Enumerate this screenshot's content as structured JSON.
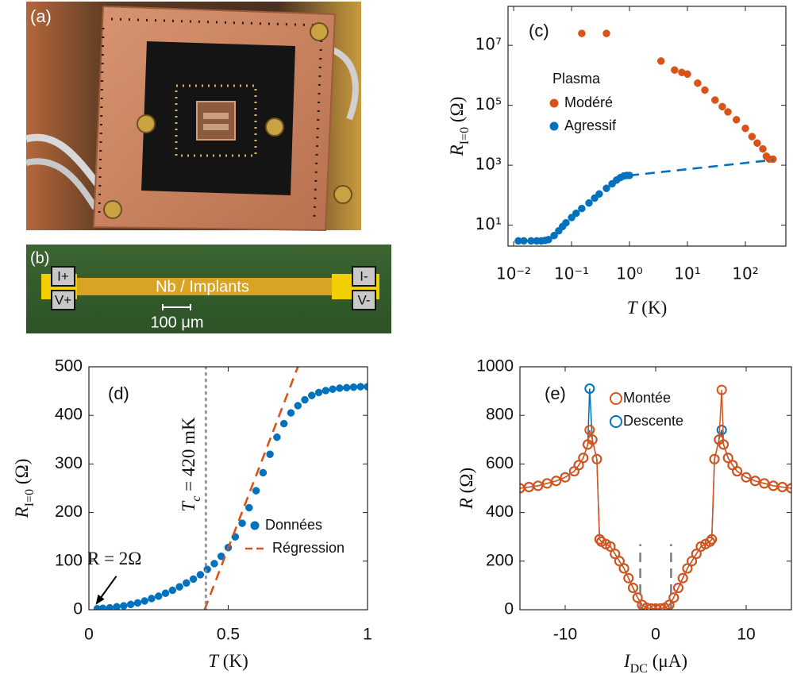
{
  "photo_a": {
    "label": "(a)"
  },
  "photo_b": {
    "label": "(b)",
    "title": "Nb / Implants",
    "scale_bar": "100 μm",
    "pads": [
      "I+",
      "V+",
      "I-",
      "V-"
    ]
  },
  "chart_data": [
    {
      "type": "scatter",
      "panel_label": "(c)",
      "xscale": "log",
      "yscale": "log",
      "xlim": [
        0.008,
        500
      ],
      "ylim": [
        2,
        200000000
      ],
      "xticks": [
        {
          "value": 0.01,
          "label": "10⁻²"
        },
        {
          "value": 0.1,
          "label": "10⁻¹"
        },
        {
          "value": 1,
          "label": "10⁰"
        },
        {
          "value": 10,
          "label": "10¹"
        },
        {
          "value": 100,
          "label": "10²"
        }
      ],
      "yticks": [
        {
          "value": 10,
          "label": "10¹"
        },
        {
          "value": 1000,
          "label": "10³"
        },
        {
          "value": 100000,
          "label": "10⁵"
        },
        {
          "value": 10000000,
          "label": "10⁷"
        }
      ],
      "xlabel": [
        {
          "text": "T"
        },
        {
          "text": " (K)"
        }
      ],
      "ylabel": [
        {
          "text": "R"
        },
        {
          "text": "I=0",
          "sub": true
        },
        {
          "text": " (Ω)"
        }
      ],
      "legend": "upper left",
      "legend_title": "Plasma",
      "series": [
        {
          "name": "Modéré",
          "color": "#d95319",
          "marker": "filled",
          "x": [
            0.15,
            0.4,
            3.5,
            6,
            8,
            10,
            15,
            20,
            30,
            40,
            50,
            70,
            100,
            130,
            160,
            200,
            230,
            260,
            300
          ],
          "values": [
            25000000,
            25000000,
            3000000,
            1500000,
            1250000,
            1100000,
            550000,
            320000,
            150000,
            90000,
            60000,
            33000,
            17000,
            9000,
            5500,
            3500,
            2000,
            1600,
            1600
          ]
        },
        {
          "name": "Agressif",
          "color": "#0072bd",
          "marker": "filled",
          "x": [
            0.012,
            0.015,
            0.02,
            0.025,
            0.03,
            0.035,
            0.04,
            0.05,
            0.06,
            0.07,
            0.08,
            0.1,
            0.12,
            0.15,
            0.2,
            0.25,
            0.3,
            0.4,
            0.5,
            0.6,
            0.7,
            0.8,
            0.9,
            1
          ],
          "values": [
            3,
            3,
            3,
            3,
            3,
            3.1,
            3.3,
            4.5,
            6.5,
            9,
            12,
            18,
            25,
            36,
            55,
            80,
            110,
            170,
            240,
            320,
            390,
            440,
            455,
            457
          ]
        },
        {
          "color": "#0072bd",
          "linestyle": "dashed",
          "x": [
            1,
            300
          ],
          "values": [
            457,
            1500
          ]
        }
      ]
    },
    {
      "type": "scatter",
      "panel_label": "(d)",
      "xlim": [
        0,
        1
      ],
      "ylim": [
        0,
        500
      ],
      "xticks": [
        0,
        0.5,
        1
      ],
      "yticks": [
        0,
        100,
        200,
        300,
        400,
        500
      ],
      "xlabel": [
        {
          "text": "T"
        },
        {
          "text": " (K)"
        }
      ],
      "ylabel": [
        {
          "text": "R"
        },
        {
          "text": "I=0",
          "sub": true
        },
        {
          "text": " (Ω)"
        }
      ],
      "legend": "lower right",
      "annotations": [
        [
          {
            "text": "T"
          },
          {
            "text": "c",
            "sub": true
          },
          {
            "text": " = 420 mK"
          }
        ],
        [
          {
            "text": "R = 2Ω"
          }
        ]
      ],
      "series": [
        {
          "name": "Données",
          "color": "#0072bd",
          "marker": "filled",
          "x": [
            0.03,
            0.05,
            0.075,
            0.1,
            0.125,
            0.15,
            0.175,
            0.2,
            0.225,
            0.25,
            0.275,
            0.3,
            0.325,
            0.35,
            0.375,
            0.4,
            0.425,
            0.45,
            0.475,
            0.5,
            0.525,
            0.55,
            0.575,
            0.6,
            0.625,
            0.65,
            0.675,
            0.7,
            0.725,
            0.75,
            0.775,
            0.8,
            0.825,
            0.85,
            0.875,
            0.9,
            0.925,
            0.95,
            0.975,
            1
          ],
          "values": [
            2,
            3,
            4,
            6,
            8,
            11,
            14,
            18,
            23,
            28,
            34,
            40,
            47,
            55,
            63,
            72,
            83,
            95,
            110,
            128,
            150,
            178,
            210,
            245,
            282,
            320,
            355,
            383,
            405,
            420,
            432,
            441,
            447,
            451,
            454,
            456,
            457,
            458,
            459,
            459
          ]
        },
        {
          "name": "Régression",
          "color": "#d95319",
          "linestyle": "dashed",
          "x": [
            0.415,
            0.75
          ],
          "values": [
            0,
            500
          ]
        },
        {
          "color": "#888888",
          "linestyle": "dotted",
          "x": [
            0.42,
            0.42
          ],
          "values": [
            0,
            500
          ]
        }
      ]
    },
    {
      "type": "scatter",
      "panel_label": "(e)",
      "xlim": [
        -15,
        15
      ],
      "ylim": [
        0,
        1000
      ],
      "xticks": [
        -10,
        0,
        10
      ],
      "yticks": [
        0,
        200,
        400,
        600,
        800,
        1000
      ],
      "xlabel": [
        {
          "text": "I"
        },
        {
          "text": "DC",
          "sub": true
        },
        {
          "text": " (μA)"
        }
      ],
      "ylabel": [
        {
          "text": "R"
        },
        {
          "text": " (Ω)"
        }
      ],
      "legend": "upper left",
      "x": [
        -15,
        -14,
        -13,
        -12,
        -11,
        -10,
        -9,
        -8.5,
        -8,
        -7.5,
        -7.3,
        -7,
        -6.5,
        -6.2,
        -6,
        -5.5,
        -5,
        -4.5,
        -4,
        -3.5,
        -3,
        -2.5,
        -2,
        -1.5,
        -1,
        -0.5,
        0,
        0.5,
        1,
        1.5,
        2,
        2.5,
        3,
        3.5,
        4,
        4.5,
        5,
        5.5,
        6,
        6.2,
        6.5,
        7,
        7.3,
        7.5,
        8,
        8.5,
        9,
        10,
        11,
        12,
        13,
        14,
        15
      ],
      "series": [
        {
          "name": "Montée",
          "color": "#d95319",
          "marker": "open",
          "linestyle": "solid",
          "values": [
            500,
            505,
            510,
            520,
            530,
            545,
            570,
            595,
            625,
            680,
            740,
            700,
            620,
            290,
            280,
            270,
            260,
            230,
            200,
            170,
            130,
            90,
            50,
            20,
            8,
            5,
            5,
            5,
            8,
            20,
            50,
            90,
            130,
            170,
            200,
            230,
            260,
            270,
            280,
            290,
            620,
            700,
            905,
            680,
            625,
            595,
            570,
            545,
            530,
            520,
            510,
            505,
            500
          ]
        },
        {
          "name": "Descente",
          "color": "#0072bd",
          "marker": "open",
          "linestyle": "solid",
          "values": [
            500,
            505,
            510,
            520,
            530,
            545,
            570,
            595,
            625,
            680,
            910,
            700,
            620,
            290,
            280,
            270,
            260,
            230,
            200,
            170,
            130,
            90,
            50,
            20,
            8,
            5,
            5,
            5,
            8,
            20,
            50,
            90,
            130,
            170,
            200,
            230,
            260,
            270,
            280,
            290,
            620,
            700,
            740,
            680,
            625,
            595,
            570,
            545,
            530,
            520,
            510,
            505,
            500
          ]
        },
        {
          "color": "#808080",
          "linestyle": "dashed",
          "x": [
            -1.7,
            -1.7
          ],
          "values": [
            0,
            270
          ]
        },
        {
          "color": "#808080",
          "linestyle": "dashed",
          "x": [
            1.7,
            1.7
          ],
          "values": [
            0,
            270
          ]
        }
      ]
    }
  ]
}
